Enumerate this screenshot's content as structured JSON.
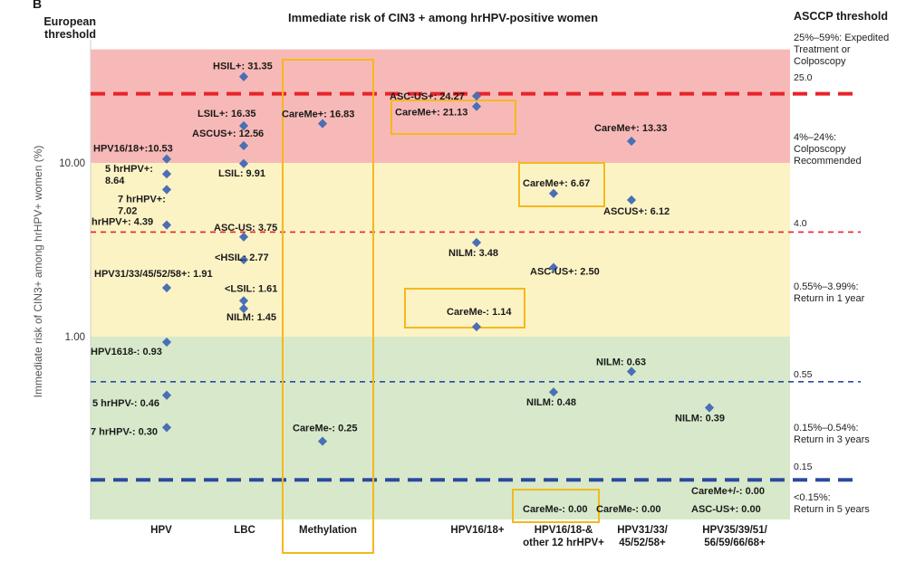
{
  "header": {
    "panel_letter": "B",
    "left_threshold_title": "European threshold",
    "title": "Immediate risk of CIN3 + among hrHPV-positive women",
    "right_threshold_title": "ASCCP threshold"
  },
  "chart_data": {
    "type": "scatter",
    "title": "Immediate risk of CIN3 + among hrHPV-positive women",
    "ylabel": "Immediate risk of CIN3+ among hrHPV+ women (%)",
    "yscale": "log",
    "ylim": [
      0.095,
      45
    ],
    "yticks": [
      {
        "value": 10,
        "label": "10.00"
      },
      {
        "value": 1,
        "label": "1.00"
      }
    ],
    "zones": [
      {
        "from": 10,
        "to": 45,
        "color": "#f7b9b7",
        "note": "25%–59%: Expedited Treatment or Colposcopy"
      },
      {
        "from": 1,
        "to": 10,
        "color": "#fcf3c5",
        "note": "4%–24%: Colposcopy Recommended / 0.55%–3.99%: Return in 1 year"
      },
      {
        "from": 0.095,
        "to": 1,
        "color": "#d7e9ca",
        "note": "0.15%–0.54%: Return in 3 years / <0.15%: Return in 5 years"
      }
    ],
    "threshold_lines": [
      {
        "value": 25,
        "label": "25.0",
        "color": "#e8232a",
        "style": "thick-dash"
      },
      {
        "value": 4,
        "label": "4.0",
        "color": "#e8232a",
        "style": "thin-dash"
      },
      {
        "value": 0.55,
        "label": "0.55",
        "color": "#2b4aa0",
        "style": "thin-dash"
      },
      {
        "value": 0.15,
        "label": "0.15",
        "color": "#2b4aa0",
        "style": "thick-dash"
      }
    ],
    "categories": [
      "HPV",
      "LBC",
      "Methylation",
      "HPV16/18+",
      "HPV16/18-&\nother 12 hrHPV+",
      "HPV31/33/\n45/52/58+",
      "HPV35/39/51/\n56/59/66/68+"
    ],
    "points": [
      {
        "category": "HPV",
        "value": 10.53,
        "label": "HPV16/18+:10.53"
      },
      {
        "category": "HPV",
        "value": 8.64,
        "label": "5 hrHPV+:\n8.64"
      },
      {
        "category": "HPV",
        "value": 7.02,
        "label": "7 hrHPV+:\n7.02"
      },
      {
        "category": "HPV",
        "value": 4.39,
        "label": "hrHPV+: 4.39"
      },
      {
        "category": "HPV",
        "value": 1.91,
        "label": "HPV31/33/45/52/58+: 1.91"
      },
      {
        "category": "HPV",
        "value": 0.93,
        "label": "HPV1618-: 0.93"
      },
      {
        "category": "HPV",
        "value": 0.46,
        "label": "5 hrHPV-: 0.46"
      },
      {
        "category": "HPV",
        "value": 0.3,
        "label": "7 hrHPV-: 0.30"
      },
      {
        "category": "LBC",
        "value": 31.35,
        "label": "HSIL+: 31.35"
      },
      {
        "category": "LBC",
        "value": 16.35,
        "label": "LSIL+: 16.35"
      },
      {
        "category": "LBC",
        "value": 12.56,
        "label": "ASCUS+: 12.56"
      },
      {
        "category": "LBC",
        "value": 9.91,
        "label": "LSIL: 9.91"
      },
      {
        "category": "LBC",
        "value": 3.75,
        "label": "ASC-US: 3.75"
      },
      {
        "category": "LBC",
        "value": 2.77,
        "label": "<HSIL: 2.77"
      },
      {
        "category": "LBC",
        "value": 1.61,
        "label": "<LSIL: 1.61"
      },
      {
        "category": "LBC",
        "value": 1.45,
        "label": "NILM: 1.45"
      },
      {
        "category": "Methylation",
        "value": 16.83,
        "label": "CareMe+: 16.83"
      },
      {
        "category": "Methylation",
        "value": 0.25,
        "label": "CareMe-: 0.25"
      },
      {
        "category": "HPV16/18+",
        "value": 24.27,
        "label": "ASC-US+: 24.27"
      },
      {
        "category": "HPV16/18+",
        "value": 21.13,
        "label": "CareMe+: 21.13"
      },
      {
        "category": "HPV16/18+",
        "value": 3.48,
        "label": "NILM: 3.48"
      },
      {
        "category": "HPV16/18+",
        "value": 1.14,
        "label": "CareMe-: 1.14"
      },
      {
        "category": "HPV16/18-&\nother 12 hrHPV+",
        "value": 6.67,
        "label": "CareMe+: 6.67"
      },
      {
        "category": "HPV16/18-&\nother 12 hrHPV+",
        "value": 2.5,
        "label": "ASC-US+: 2.50"
      },
      {
        "category": "HPV16/18-&\nother 12 hrHPV+",
        "value": 0.48,
        "label": "NILM: 0.48"
      },
      {
        "category": "HPV16/18-&\nother 12 hrHPV+",
        "value": 0.0,
        "label": "CareMe-: 0.00"
      },
      {
        "category": "HPV31/33/\n45/52/58+",
        "value": 13.33,
        "label": "CareMe+: 13.33"
      },
      {
        "category": "HPV31/33/\n45/52/58+",
        "value": 6.12,
        "label": "ASCUS+: 6.12"
      },
      {
        "category": "HPV31/33/\n45/52/58+",
        "value": 0.63,
        "label": "NILM: 0.63"
      },
      {
        "category": "HPV31/33/\n45/52/58+",
        "value": 0.0,
        "label": "CareMe-: 0.00"
      },
      {
        "category": "HPV35/39/51/\n56/59/66/68+",
        "value": 0.39,
        "label": "NILM: 0.39"
      },
      {
        "category": "HPV35/39/51/\n56/59/66/68+",
        "value": 0.0,
        "label": "CareMe+/-: 0.00"
      },
      {
        "category": "HPV35/39/51/\n56/59/66/68+",
        "value": 0.0,
        "label": "ASC-US+: 0.00"
      }
    ],
    "highlighted": [
      "Methylation column",
      "CareMe+: 21.13",
      "CareMe+: 6.67",
      "CareMe-: 1.14",
      "CareMe-: 0.00"
    ]
  },
  "zones_text": {
    "z1": "25%–59%: Expedited\nTreatment or\nColposcopy",
    "z2": "4%–24%:\nColposcopy\nRecommended",
    "z3": "0.55%–3.99%:\nReturn in 1 year",
    "z4": "0.15%–0.54%:\nReturn in 3 years",
    "z5": "<0.15%:\nReturn in 5 years"
  },
  "colors": {
    "marker": "#4a6fb5",
    "highlight_box": "#f5b81c",
    "red_line": "#e8232a",
    "blue_line": "#2b4aa0"
  }
}
